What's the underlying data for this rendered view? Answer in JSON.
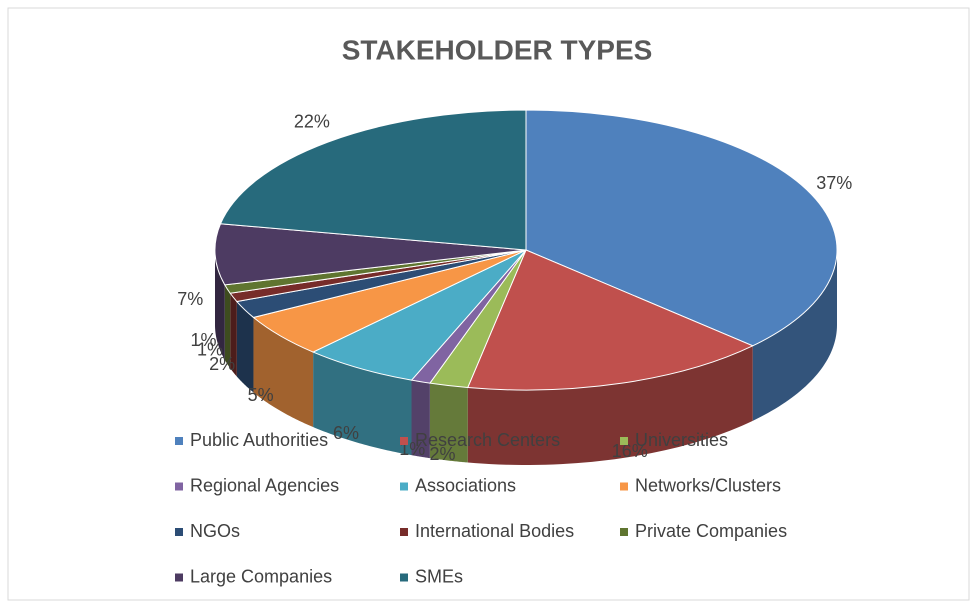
{
  "chart_data": {
    "type": "pie",
    "title": "STAKEHOLDER TYPES",
    "categories": [
      "Public Authorities",
      "Research Centers",
      "Universities",
      "Regional Agencies",
      "Associations",
      "Networks/Clusters",
      "NGOs",
      "International Bodies",
      "Private Companies",
      "Large Companies",
      "SMEs"
    ],
    "values": [
      37,
      16,
      2,
      1,
      6,
      5,
      2,
      1,
      1,
      7,
      22
    ],
    "value_labels": [
      "37%",
      "16%",
      "2%",
      "1%",
      "6%",
      "5%",
      "2%",
      "1%",
      "1%",
      "7%",
      "22%"
    ],
    "colors": [
      "#4f81bd",
      "#c0504d",
      "#9bbb59",
      "#8064a2",
      "#4bacc6",
      "#f79646",
      "#2c4d75",
      "#772c2a",
      "#5f7530",
      "#4d3b62",
      "#276a7c"
    ],
    "legend": "bottom"
  }
}
